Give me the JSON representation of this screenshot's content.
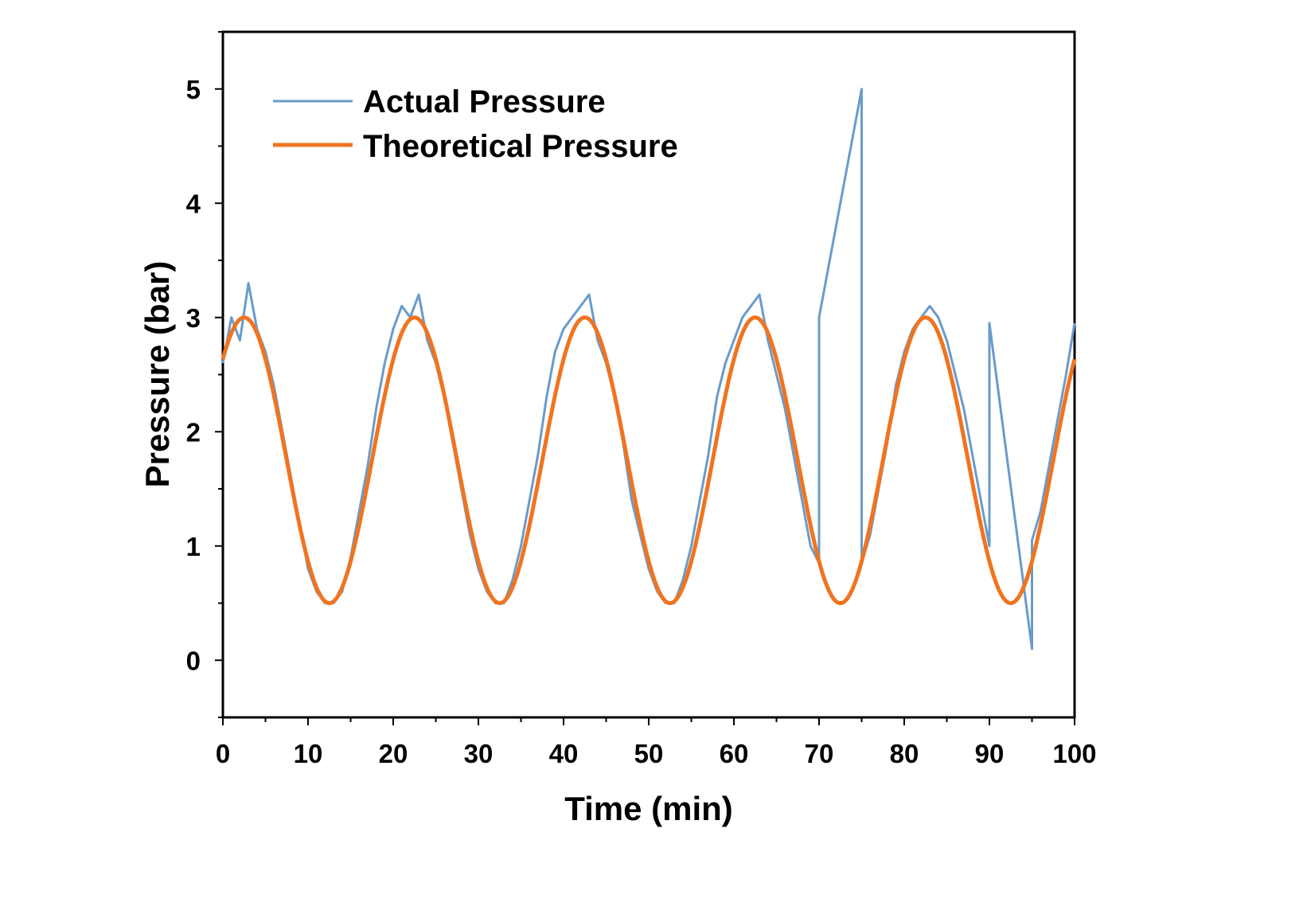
{
  "chart_data": {
    "type": "line",
    "title": "",
    "xlabel": "Time (min)",
    "ylabel": "Pressure (bar)",
    "xlim": [
      0,
      100
    ],
    "ylim": [
      -0.5,
      5.5
    ],
    "x_ticks": [
      0,
      10,
      20,
      30,
      40,
      50,
      60,
      70,
      80,
      90,
      100
    ],
    "x_tick_labels": [
      "0",
      "10",
      "20",
      "30",
      "40",
      "50",
      "60",
      "70",
      "80",
      "90",
      "100"
    ],
    "y_ticks": [
      0,
      1,
      2,
      3,
      4,
      5
    ],
    "y_tick_labels": [
      "0",
      "1",
      "2",
      "3",
      "4",
      "5"
    ],
    "grid": false,
    "legend_position": "top-left",
    "series": [
      {
        "name": "Actual Pressure",
        "color": "#6a9bcb",
        "description_kind": "noisy sinusoid with faults",
        "x": [
          0,
          1,
          2,
          3,
          4,
          5,
          6,
          7,
          8,
          9,
          10,
          11,
          12,
          13,
          14,
          15,
          16,
          17,
          18,
          19,
          20,
          21,
          22,
          23,
          24,
          25,
          26,
          27,
          28,
          29,
          30,
          31,
          32,
          33,
          34,
          35,
          36,
          37,
          38,
          39,
          40,
          41,
          42,
          43,
          44,
          45,
          46,
          47,
          48,
          49,
          50,
          51,
          52,
          53,
          54,
          55,
          56,
          57,
          58,
          59,
          60,
          61,
          62,
          63,
          64,
          65,
          66,
          67,
          68,
          69,
          70,
          70,
          75,
          75,
          76,
          77,
          78,
          79,
          80,
          81,
          82,
          83,
          84,
          85,
          86,
          87,
          88,
          89,
          90,
          90,
          95,
          95,
          96,
          97,
          98,
          99,
          100
        ],
        "y": [
          2.6,
          3.0,
          2.8,
          3.3,
          2.9,
          2.7,
          2.4,
          2.0,
          1.6,
          1.2,
          0.8,
          0.6,
          0.5,
          0.5,
          0.6,
          0.9,
          1.3,
          1.7,
          2.2,
          2.6,
          2.9,
          3.1,
          3.0,
          3.2,
          2.8,
          2.6,
          2.3,
          1.9,
          1.5,
          1.1,
          0.8,
          0.6,
          0.5,
          0.5,
          0.7,
          1.0,
          1.4,
          1.8,
          2.3,
          2.7,
          2.9,
          3.0,
          3.1,
          3.2,
          2.8,
          2.6,
          2.3,
          1.9,
          1.4,
          1.1,
          0.8,
          0.6,
          0.5,
          0.5,
          0.7,
          1.0,
          1.4,
          1.8,
          2.3,
          2.6,
          2.8,
          3.0,
          3.1,
          3.2,
          2.8,
          2.5,
          2.2,
          1.8,
          1.4,
          1.0,
          0.85,
          3.0,
          5.0,
          0.85,
          1.1,
          1.5,
          1.9,
          2.4,
          2.7,
          2.9,
          3.0,
          3.1,
          3.0,
          2.8,
          2.5,
          2.2,
          1.8,
          1.4,
          1.0,
          2.95,
          0.1,
          1.05,
          1.3,
          1.7,
          2.1,
          2.5,
          2.95
        ]
      },
      {
        "name": "Theoretical Pressure",
        "color": "#f07420",
        "formula_kind": "sinusoid",
        "mean": 1.75,
        "amplitude": 1.25,
        "period": 20,
        "peak_at": 2.5
      }
    ]
  }
}
